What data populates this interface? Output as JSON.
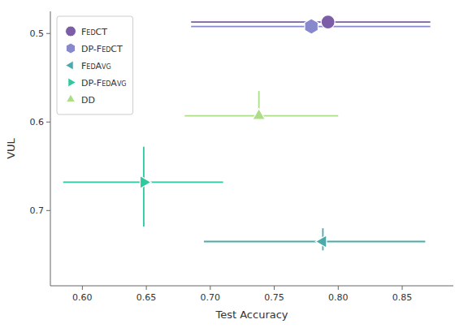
{
  "chart_data": {
    "type": "scatter",
    "xlabel": "Test Accuracy",
    "ylabel": "VUL",
    "xlim": [
      0.575,
      0.89
    ],
    "ylim": [
      0.785,
      0.475
    ],
    "xticks": [
      {
        "value": 0.6,
        "label": "0.60"
      },
      0.65,
      {
        "value": 0.7,
        "label": "0.70"
      },
      0.75,
      {
        "value": 0.8,
        "label": "0.80"
      },
      0.85
    ],
    "yticks": [
      0.5,
      0.6,
      0.7
    ],
    "legend": "upper left",
    "series": [
      {
        "name": "FedCT",
        "color": "#7b5ea7",
        "marker": "circle",
        "x": [
          0.792
        ],
        "values": [
          0.487
        ],
        "xerr_lo": [
          0.107
        ],
        "xerr_hi": [
          0.08
        ],
        "yerr_lo": [
          0.0
        ],
        "yerr_hi": [
          0.0
        ]
      },
      {
        "name": "DP-FedCT",
        "color": "#8888cc",
        "marker": "hexagon",
        "x": [
          0.779
        ],
        "values": [
          0.492
        ],
        "xerr_lo": [
          0.094
        ],
        "xerr_hi": [
          0.093
        ],
        "yerr_lo": [
          0.0
        ],
        "yerr_hi": [
          0.0
        ]
      },
      {
        "name": "FedAvg",
        "color": "#4daaaa",
        "marker": "triangle-left",
        "x": [
          0.788
        ],
        "values": [
          0.735
        ],
        "xerr_lo": [
          0.093
        ],
        "xerr_hi": [
          0.08
        ],
        "yerr_lo": [
          0.015
        ],
        "yerr_hi": [
          0.01
        ]
      },
      {
        "name": "DP-FedAvg",
        "color": "#2dc9a0",
        "marker": "triangle-right",
        "x": [
          0.648
        ],
        "values": [
          0.668
        ],
        "xerr_lo": [
          0.063
        ],
        "xerr_hi": [
          0.062
        ],
        "yerr_lo": [
          0.04
        ],
        "yerr_hi": [
          0.05
        ]
      },
      {
        "name": "DD",
        "color": "#aedd88",
        "marker": "triangle-up",
        "x": [
          0.738
        ],
        "values": [
          0.593
        ],
        "xerr_lo": [
          0.058
        ],
        "xerr_hi": [
          0.062
        ],
        "yerr_lo": [
          0.028
        ],
        "yerr_hi": [
          0.0
        ]
      }
    ]
  }
}
